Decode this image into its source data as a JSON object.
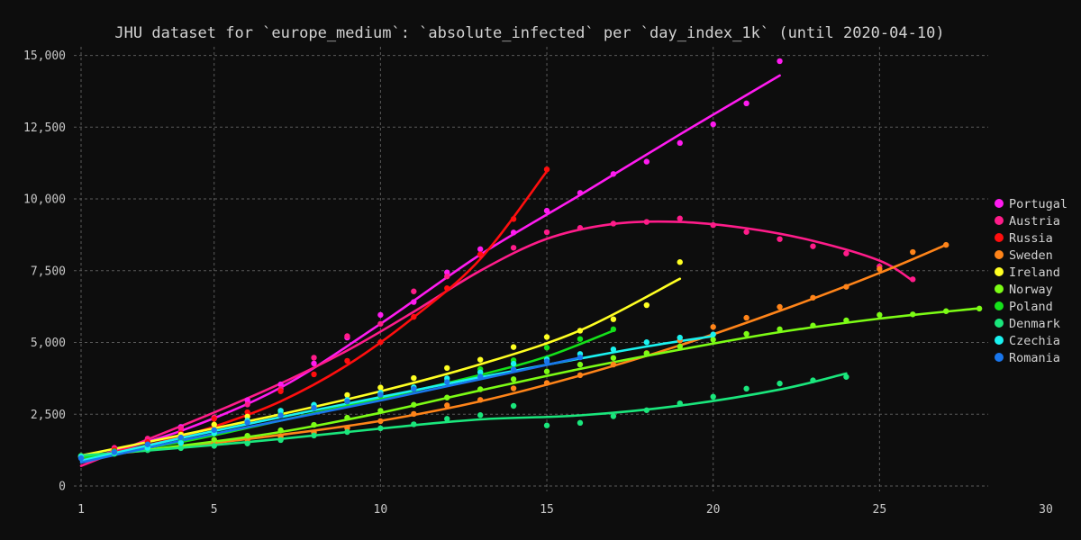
{
  "chart_data": {
    "type": "scatter",
    "title": "JHU dataset for `europe_medium`: `absolute_infected` per `day_index_1k` (until 2020-04-10)",
    "xlabel": "",
    "ylabel": "",
    "xlim": [
      1,
      30
    ],
    "ylim": [
      0,
      15300
    ],
    "x_ticks": [
      1,
      5,
      10,
      15,
      20,
      25,
      30
    ],
    "y_ticks": [
      0,
      2500,
      5000,
      7500,
      10000,
      12500,
      15000
    ],
    "x_tick_labels": [
      "1",
      "5",
      "10",
      "15",
      "20",
      "25",
      "30"
    ],
    "y_tick_labels": [
      "0",
      "2,500",
      "5,000",
      "7,500",
      "10,000",
      "12,500",
      "15,000"
    ],
    "grid": true,
    "legend_position": "right",
    "series": [
      {
        "name": "Portugal",
        "color": "#ff1bf0",
        "points": [
          [
            1,
            1020
          ],
          [
            2,
            1280
          ],
          [
            3,
            1600
          ],
          [
            4,
            2060
          ],
          [
            5,
            2360
          ],
          [
            6,
            2990
          ],
          [
            7,
            3540
          ],
          [
            8,
            4270
          ],
          [
            9,
            5170
          ],
          [
            10,
            5960
          ],
          [
            11,
            6410
          ],
          [
            12,
            7440
          ],
          [
            13,
            8250
          ],
          [
            14,
            8830
          ],
          [
            15,
            9590
          ],
          [
            16,
            10210
          ],
          [
            17,
            10870
          ],
          [
            18,
            11300
          ],
          [
            19,
            11950
          ],
          [
            20,
            12600
          ],
          [
            21,
            13330
          ],
          [
            22,
            14800
          ]
        ],
        "fit": [
          [
            1,
            900
          ],
          [
            4,
            1920
          ],
          [
            7,
            3430
          ],
          [
            10,
            5650
          ],
          [
            13,
            8060
          ],
          [
            16,
            10140
          ],
          [
            19,
            12250
          ],
          [
            22,
            14300
          ]
        ]
      },
      {
        "name": "Austria",
        "color": "#ff1c8a",
        "points": [
          [
            1,
            1010
          ],
          [
            2,
            1330
          ],
          [
            3,
            1650
          ],
          [
            4,
            2010
          ],
          [
            5,
            2390
          ],
          [
            6,
            2840
          ],
          [
            7,
            3380
          ],
          [
            8,
            4470
          ],
          [
            9,
            5220
          ],
          [
            10,
            5650
          ],
          [
            11,
            6780
          ],
          [
            12,
            7300
          ],
          [
            13,
            8050
          ],
          [
            14,
            8300
          ],
          [
            15,
            8840
          ],
          [
            16,
            8990
          ],
          [
            17,
            9140
          ],
          [
            18,
            9200
          ],
          [
            19,
            9320
          ],
          [
            20,
            9090
          ],
          [
            21,
            8850
          ],
          [
            22,
            8600
          ],
          [
            23,
            8350
          ],
          [
            24,
            8100
          ],
          [
            25,
            7650
          ],
          [
            26,
            7200
          ]
        ],
        "fit": [
          [
            1,
            700
          ],
          [
            3,
            1620
          ],
          [
            5,
            2560
          ],
          [
            7,
            3570
          ],
          [
            9,
            4720
          ],
          [
            11,
            6070
          ],
          [
            13,
            7500
          ],
          [
            15,
            8610
          ],
          [
            17,
            9130
          ],
          [
            19,
            9200
          ],
          [
            21,
            8980
          ],
          [
            23,
            8540
          ],
          [
            25,
            7850
          ],
          [
            26,
            7150
          ]
        ]
      },
      {
        "name": "Russia",
        "color": "#ff0e0e",
        "points": [
          [
            1,
            1030
          ],
          [
            2,
            1260
          ],
          [
            3,
            1530
          ],
          [
            4,
            1840
          ],
          [
            5,
            2340
          ],
          [
            6,
            2570
          ],
          [
            7,
            3300
          ],
          [
            8,
            3890
          ],
          [
            9,
            4360
          ],
          [
            10,
            5010
          ],
          [
            11,
            5890
          ],
          [
            12,
            6890
          ],
          [
            13,
            8070
          ],
          [
            14,
            9300
          ],
          [
            15,
            11030
          ]
        ],
        "fit": [
          [
            1,
            960
          ],
          [
            3,
            1420
          ],
          [
            5,
            2070
          ],
          [
            7,
            2950
          ],
          [
            9,
            4210
          ],
          [
            11,
            5880
          ],
          [
            13,
            7910
          ],
          [
            15,
            10960
          ]
        ]
      },
      {
        "name": "Sweden",
        "color": "#ff8419",
        "points": [
          [
            1,
            1010
          ],
          [
            2,
            1170
          ],
          [
            3,
            1290
          ],
          [
            4,
            1420
          ],
          [
            5,
            1530
          ],
          [
            6,
            1620
          ],
          [
            7,
            1730
          ],
          [
            8,
            1860
          ],
          [
            9,
            2020
          ],
          [
            10,
            2260
          ],
          [
            11,
            2510
          ],
          [
            12,
            2810
          ],
          [
            13,
            3000
          ],
          [
            14,
            3400
          ],
          [
            15,
            3590
          ],
          [
            16,
            3860
          ],
          [
            17,
            4230
          ],
          [
            18,
            4630
          ],
          [
            19,
            5070
          ],
          [
            20,
            5540
          ],
          [
            21,
            5860
          ],
          [
            22,
            6240
          ],
          [
            23,
            6560
          ],
          [
            24,
            6940
          ],
          [
            25,
            7560
          ],
          [
            26,
            8150
          ],
          [
            27,
            8400
          ]
        ],
        "fit": [
          [
            1,
            1000
          ],
          [
            4,
            1370
          ],
          [
            7,
            1780
          ],
          [
            10,
            2270
          ],
          [
            13,
            2950
          ],
          [
            16,
            3850
          ],
          [
            19,
            4900
          ],
          [
            22,
            6100
          ],
          [
            25,
            7420
          ],
          [
            27,
            8400
          ]
        ]
      },
      {
        "name": "Ireland",
        "color": "#ffff22",
        "points": [
          [
            1,
            1050
          ],
          [
            2,
            1200
          ],
          [
            3,
            1350
          ],
          [
            4,
            1790
          ],
          [
            5,
            2140
          ],
          [
            6,
            2420
          ],
          [
            7,
            2620
          ],
          [
            8,
            2820
          ],
          [
            9,
            3170
          ],
          [
            10,
            3430
          ],
          [
            11,
            3760
          ],
          [
            12,
            4110
          ],
          [
            13,
            4400
          ],
          [
            14,
            4840
          ],
          [
            15,
            5190
          ],
          [
            16,
            5410
          ],
          [
            17,
            5810
          ],
          [
            18,
            6300
          ],
          [
            19,
            7800
          ]
        ],
        "fit": [
          [
            1,
            1060
          ],
          [
            4,
            1770
          ],
          [
            7,
            2500
          ],
          [
            10,
            3300
          ],
          [
            13,
            4240
          ],
          [
            16,
            5420
          ],
          [
            19,
            7220
          ]
        ]
      },
      {
        "name": "Norway",
        "color": "#7cfc15",
        "points": [
          [
            1,
            1020
          ],
          [
            2,
            1170
          ],
          [
            3,
            1260
          ],
          [
            4,
            1350
          ],
          [
            5,
            1610
          ],
          [
            6,
            1750
          ],
          [
            7,
            1940
          ],
          [
            8,
            2130
          ],
          [
            9,
            2380
          ],
          [
            10,
            2620
          ],
          [
            11,
            2830
          ],
          [
            12,
            3080
          ],
          [
            13,
            3370
          ],
          [
            14,
            3720
          ],
          [
            15,
            3990
          ],
          [
            16,
            4230
          ],
          [
            17,
            4460
          ],
          [
            18,
            4620
          ],
          [
            19,
            4860
          ],
          [
            20,
            5100
          ],
          [
            21,
            5300
          ],
          [
            22,
            5460
          ],
          [
            23,
            5590
          ],
          [
            24,
            5770
          ],
          [
            25,
            5960
          ],
          [
            26,
            5980
          ],
          [
            27,
            6090
          ],
          [
            28,
            6180
          ]
        ],
        "fit": [
          [
            1,
            1000
          ],
          [
            4,
            1400
          ],
          [
            7,
            1880
          ],
          [
            10,
            2550
          ],
          [
            13,
            3330
          ],
          [
            16,
            4080
          ],
          [
            19,
            4750
          ],
          [
            22,
            5360
          ],
          [
            25,
            5830
          ],
          [
            28,
            6190
          ]
        ]
      },
      {
        "name": "Poland",
        "color": "#15e11a",
        "points": [
          [
            1,
            1050
          ],
          [
            2,
            1210
          ],
          [
            3,
            1380
          ],
          [
            4,
            1640
          ],
          [
            5,
            1840
          ],
          [
            6,
            2250
          ],
          [
            7,
            2530
          ],
          [
            8,
            2720
          ],
          [
            9,
            2930
          ],
          [
            10,
            3150
          ],
          [
            11,
            3380
          ],
          [
            12,
            3670
          ],
          [
            13,
            4070
          ],
          [
            14,
            4380
          ],
          [
            15,
            4820
          ],
          [
            16,
            5120
          ],
          [
            17,
            5460
          ]
        ],
        "fit": [
          [
            1,
            980
          ],
          [
            4,
            1530
          ],
          [
            7,
            2280
          ],
          [
            10,
            3050
          ],
          [
            13,
            3870
          ],
          [
            15,
            4510
          ],
          [
            17,
            5410
          ]
        ]
      },
      {
        "name": "Denmark",
        "color": "#1ae67c",
        "points": [
          [
            1,
            1040
          ],
          [
            2,
            1120
          ],
          [
            3,
            1250
          ],
          [
            4,
            1320
          ],
          [
            5,
            1400
          ],
          [
            6,
            1480
          ],
          [
            7,
            1600
          ],
          [
            8,
            1760
          ],
          [
            9,
            1880
          ],
          [
            10,
            2010
          ],
          [
            11,
            2150
          ],
          [
            12,
            2340
          ],
          [
            13,
            2470
          ],
          [
            14,
            2790
          ],
          [
            15,
            2110
          ],
          [
            16,
            2200
          ],
          [
            17,
            2430
          ],
          [
            18,
            2640
          ],
          [
            19,
            2880
          ],
          [
            20,
            3110
          ],
          [
            21,
            3390
          ],
          [
            22,
            3570
          ],
          [
            23,
            3680
          ],
          [
            24,
            3800
          ]
        ],
        "fit": [
          [
            1,
            1060
          ],
          [
            4,
            1330
          ],
          [
            7,
            1640
          ],
          [
            10,
            2000
          ],
          [
            13,
            2320
          ],
          [
            16,
            2460
          ],
          [
            19,
            2800
          ],
          [
            22,
            3360
          ],
          [
            24,
            3920
          ]
        ]
      },
      {
        "name": "Czechia",
        "color": "#1af2f0",
        "points": [
          [
            1,
            1020
          ],
          [
            2,
            1160
          ],
          [
            3,
            1330
          ],
          [
            4,
            1500
          ],
          [
            5,
            1840
          ],
          [
            6,
            2280
          ],
          [
            7,
            2620
          ],
          [
            8,
            2830
          ],
          [
            9,
            3000
          ],
          [
            10,
            3250
          ],
          [
            11,
            3440
          ],
          [
            12,
            3750
          ],
          [
            13,
            3960
          ],
          [
            14,
            4260
          ],
          [
            15,
            4410
          ],
          [
            16,
            4600
          ],
          [
            17,
            4760
          ],
          [
            18,
            5010
          ],
          [
            19,
            5170
          ],
          [
            20,
            5280
          ]
        ],
        "fit": [
          [
            1,
            880
          ],
          [
            4,
            1670
          ],
          [
            7,
            2400
          ],
          [
            10,
            3100
          ],
          [
            13,
            3790
          ],
          [
            16,
            4440
          ],
          [
            18,
            4860
          ],
          [
            20,
            5220
          ]
        ]
      },
      {
        "name": "Romania",
        "color": "#1976ec",
        "points": [
          [
            1,
            970
          ],
          [
            2,
            1180
          ],
          [
            3,
            1450
          ],
          [
            4,
            1690
          ],
          [
            5,
            1950
          ],
          [
            6,
            2210
          ],
          [
            7,
            2460
          ],
          [
            8,
            2720
          ],
          [
            9,
            2950
          ],
          [
            10,
            3180
          ],
          [
            11,
            3380
          ],
          [
            12,
            3620
          ],
          [
            13,
            3810
          ],
          [
            14,
            4060
          ],
          [
            15,
            4340
          ],
          [
            16,
            4480
          ]
        ],
        "fit": [
          [
            1,
            820
          ],
          [
            4,
            1580
          ],
          [
            7,
            2280
          ],
          [
            10,
            2980
          ],
          [
            13,
            3720
          ],
          [
            16,
            4470
          ]
        ]
      }
    ]
  }
}
